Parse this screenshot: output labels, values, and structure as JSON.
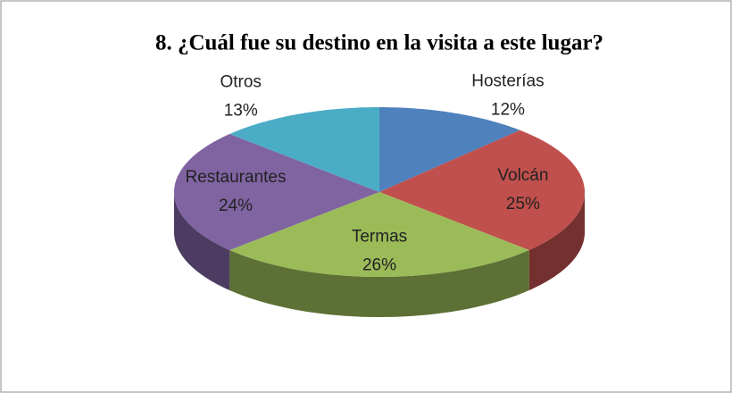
{
  "chart_data": {
    "type": "pie3d",
    "title": "8. ¿Cuál fue su destino en la visita a este lugar?",
    "categories": [
      "Hosterías",
      "Volcán",
      "Termas",
      "Restaurantes",
      "Otros"
    ],
    "values": [
      12,
      25,
      26,
      24,
      13
    ],
    "value_labels": [
      "12%",
      "25%",
      "26%",
      "24%",
      "13%"
    ],
    "colors": [
      "#4f81bd",
      "#c0504d",
      "#9bbb59",
      "#8064a2",
      "#4bacc6"
    ]
  }
}
